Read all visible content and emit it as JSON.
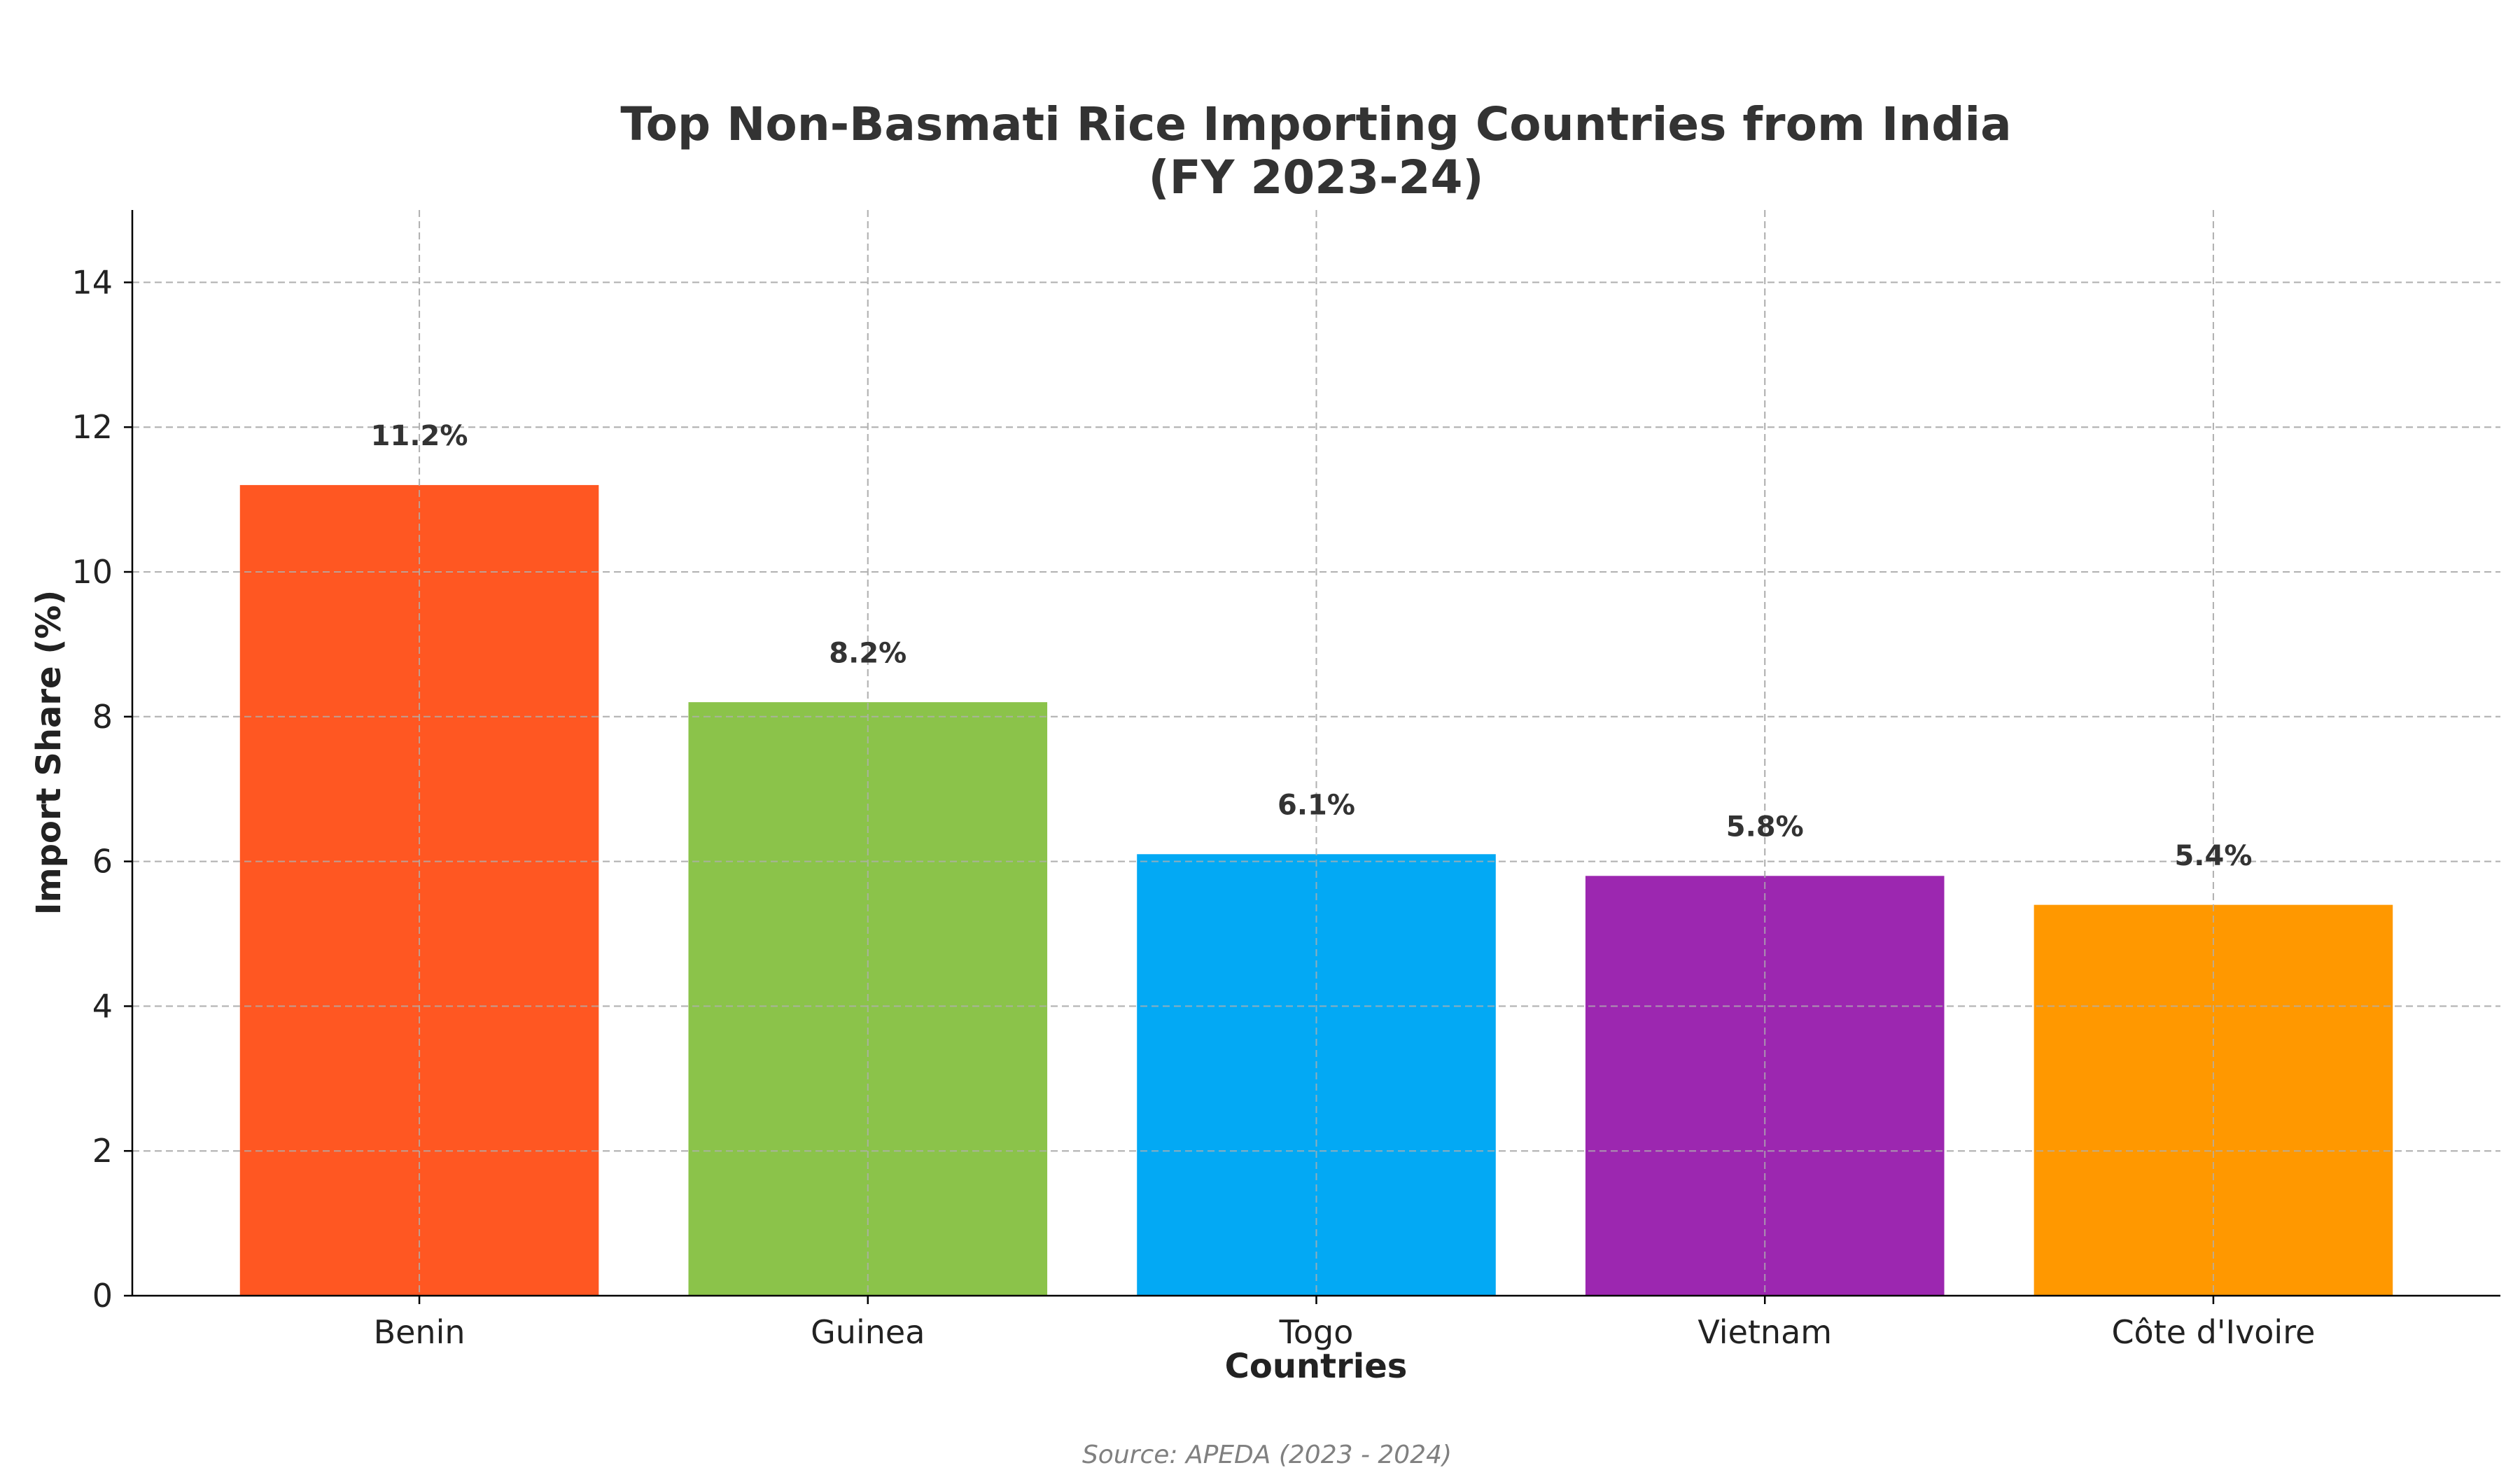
{
  "chart_data": {
    "type": "bar",
    "title": "Top Non-Basmati Rice Importing Countries from India",
    "subtitle": "(FY 2023-24)",
    "xlabel": "Countries",
    "ylabel": "Import Share (%)",
    "categories": [
      "Benin",
      "Guinea",
      "Togo",
      "Vietnam",
      "Côte d'Ivoire"
    ],
    "values": [
      11.2,
      8.2,
      6.1,
      5.8,
      5.4
    ],
    "data_labels": [
      "11.2%",
      "8.2%",
      "6.1%",
      "5.8%",
      "5.4%"
    ],
    "colors": [
      "#FF5722",
      "#8BC34A",
      "#03A9F4",
      "#9C27B0",
      "#FF9800"
    ],
    "ylim": [
      0,
      15
    ],
    "yticks": [
      0,
      2,
      4,
      6,
      8,
      10,
      12,
      14
    ],
    "grid": true,
    "grid_style": "dashed",
    "legend": "none"
  },
  "source": "Source: APEDA (2023 - 2024)"
}
